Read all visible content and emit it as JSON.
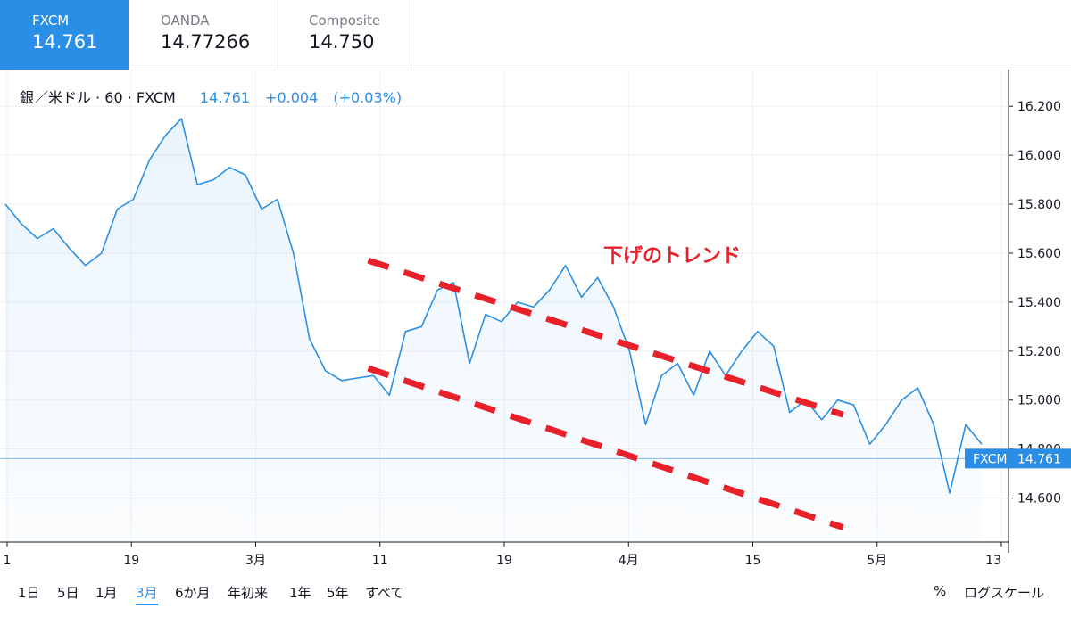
{
  "tabs": [
    {
      "name": "FXCM",
      "price": "14.761",
      "active": true
    },
    {
      "name": "OANDA",
      "price": "14.77266",
      "active": false
    },
    {
      "name": "Composite",
      "price": "14.750",
      "active": false
    }
  ],
  "legend": {
    "symbol": "銀／米ドル · 60 · FXCM",
    "last": "14.761",
    "change": "+0.004",
    "change_pct": "(+0.03%)"
  },
  "annotation": "下げのトレンド",
  "price_tag": {
    "source": "FXCM",
    "value": "14.761"
  },
  "ranges": [
    "1日",
    "5日",
    "1月",
    "3月",
    "6か月",
    "年初来",
    "1年",
    "5年",
    "すべて"
  ],
  "selected_range": "3月",
  "right_controls": {
    "percent": "%",
    "log": "ログスケール"
  },
  "colors": {
    "accent": "#2a8ee6",
    "line": "#2b8fe3",
    "trend": "#e8202a"
  },
  "chart_data": {
    "type": "area",
    "series": [
      {
        "x": [
          0,
          1.5,
          3,
          4.5,
          6,
          7.5,
          9,
          10.5,
          12,
          13.5,
          15,
          16.5,
          18,
          19.5,
          21,
          22.5,
          24,
          25.5,
          27,
          28.5,
          30,
          31.5,
          33,
          34.5,
          36,
          37.5,
          39,
          40.5,
          42,
          43.5,
          45,
          46.5,
          48,
          49.5,
          51,
          52.5,
          54,
          55.5,
          57,
          58.5,
          60,
          61.5,
          63,
          64.5,
          66,
          67.5,
          69,
          70.5,
          72,
          73.5,
          75,
          76.5,
          78,
          79.5,
          81,
          82.5,
          84,
          85.5,
          87,
          88.5,
          90,
          91.5
        ],
        "y": [
          15.8,
          15.72,
          15.66,
          15.7,
          15.62,
          15.55,
          15.6,
          15.78,
          15.82,
          15.98,
          16.08,
          16.15,
          15.88,
          15.9,
          15.95,
          15.92,
          15.78,
          15.82,
          15.6,
          15.25,
          15.12,
          15.08,
          15.09,
          15.1,
          15.02,
          15.28,
          15.3,
          15.45,
          15.48,
          15.15,
          15.35,
          15.32,
          15.4,
          15.38,
          15.45,
          15.55,
          15.42,
          15.5,
          15.38,
          15.2,
          14.9,
          15.1,
          15.15,
          15.02,
          15.2,
          15.1,
          15.2,
          15.28,
          15.22,
          14.95,
          15.0,
          14.92,
          15.0,
          14.98,
          14.82,
          14.9,
          15.0,
          15.05,
          14.9,
          14.62,
          14.9,
          14.82
        ]
      }
    ],
    "x_tick_labels": [
      "1",
      "19",
      "3月",
      "11",
      "19",
      "4月",
      "15",
      "5月",
      "13"
    ],
    "y_ticks": [
      14.6,
      14.8,
      15.0,
      15.2,
      15.4,
      15.6,
      15.8,
      16.0,
      16.2
    ],
    "y_tick_labels": [
      "14.600",
      "14.800",
      "15.000",
      "15.200",
      "15.400",
      "15.600",
      "15.800",
      "16.000",
      "16.200"
    ],
    "ylim": [
      14.42,
      16.35
    ],
    "last_value": 14.761,
    "trend_lines": [
      {
        "x": [
          34,
          78.5
        ],
        "y": [
          15.57,
          14.94
        ]
      },
      {
        "x": [
          34,
          78.5
        ],
        "y": [
          15.13,
          14.48
        ]
      }
    ]
  }
}
